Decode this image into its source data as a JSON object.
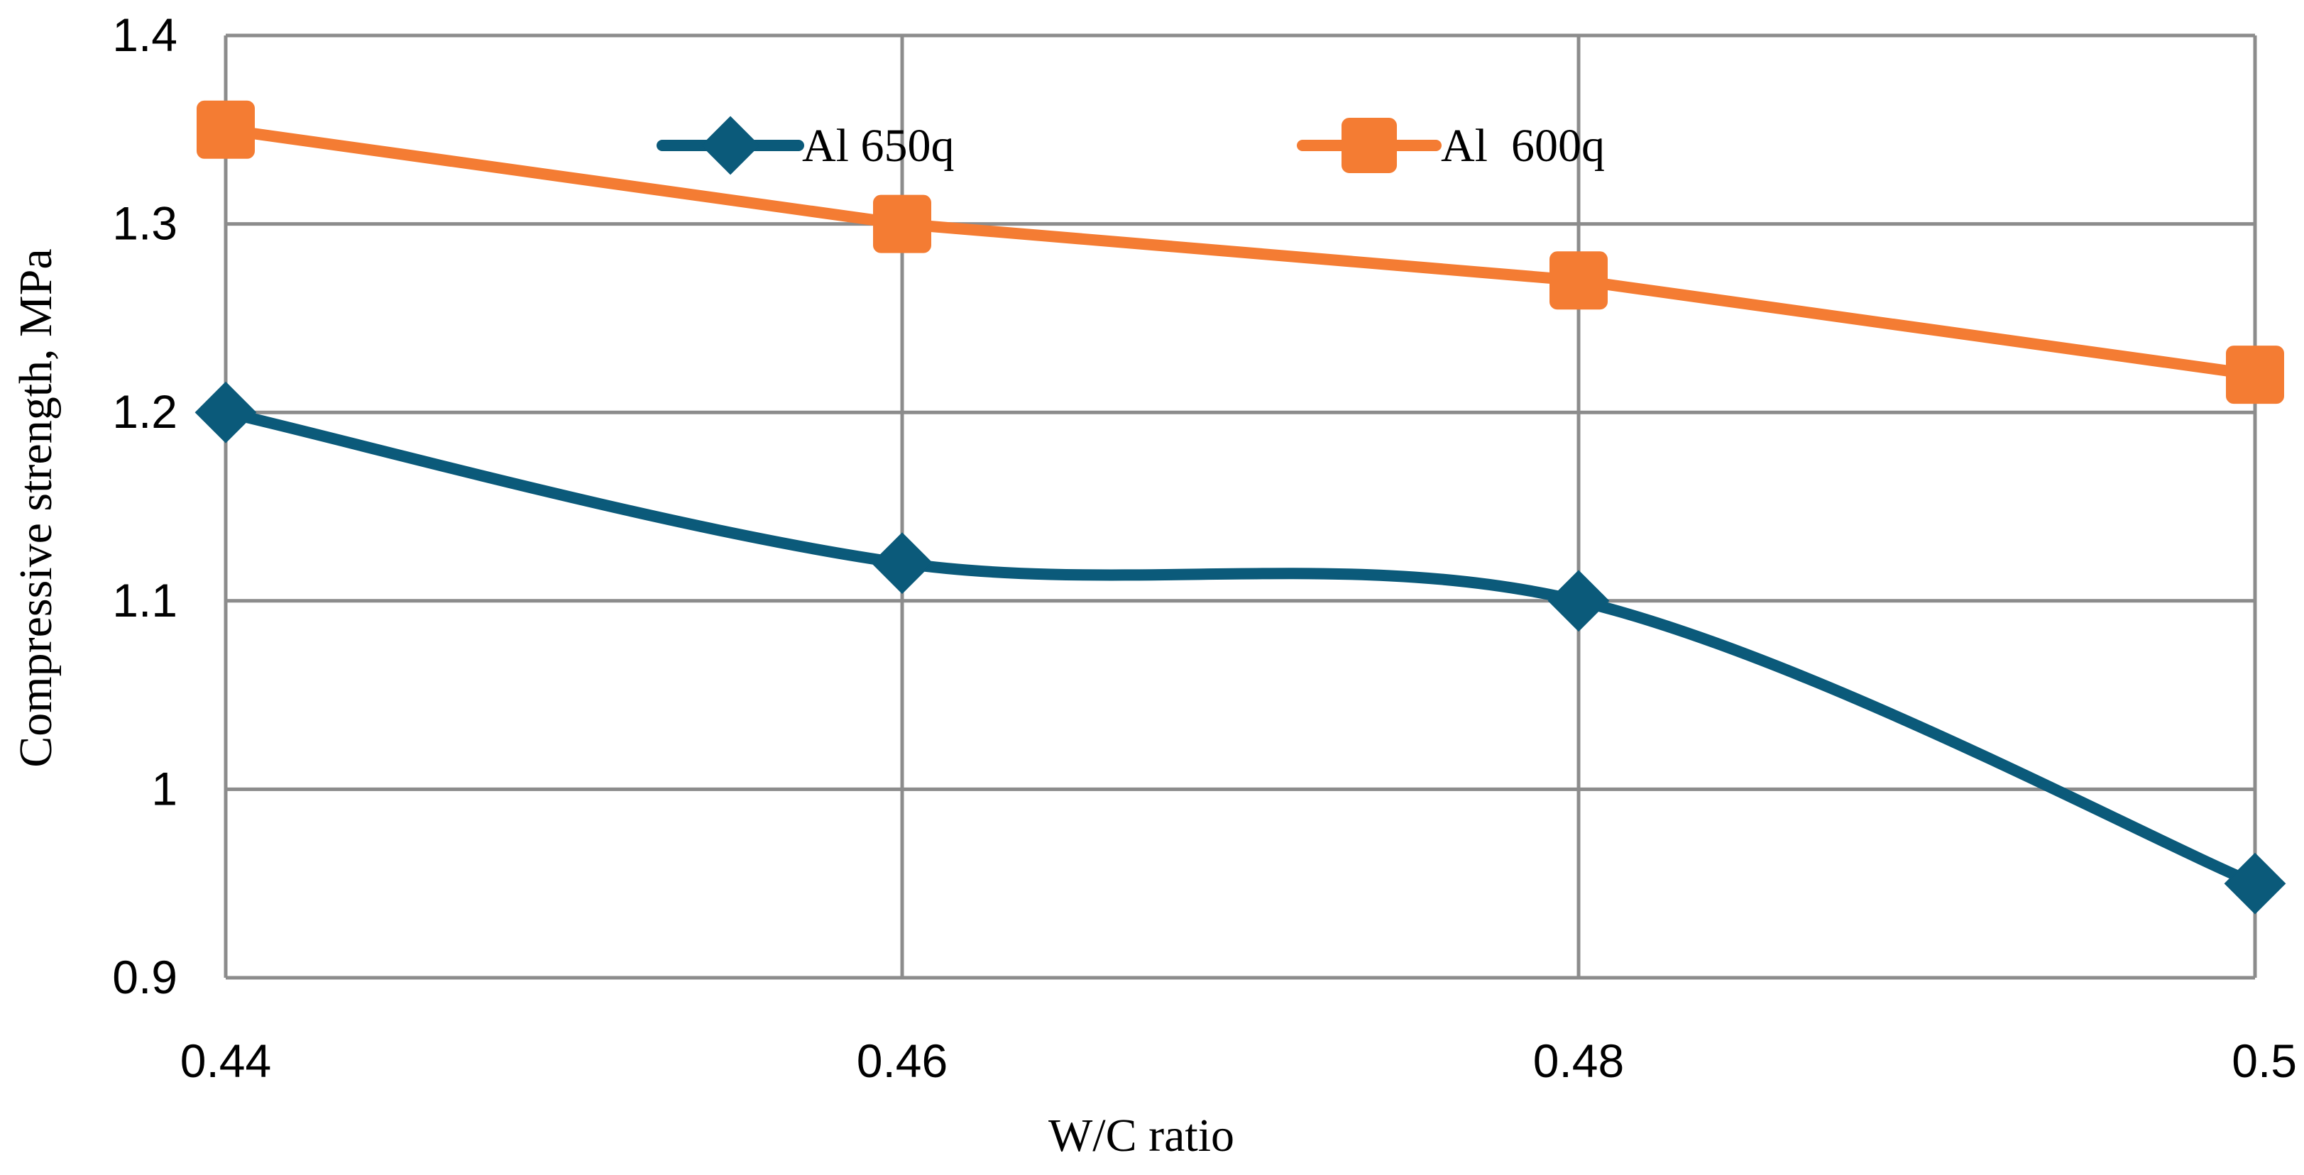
{
  "chart_data": {
    "type": "line",
    "title": "",
    "xlabel": "W/C  ratio",
    "ylabel": "Compressive strength, MPa",
    "x": [
      0.44,
      0.46,
      0.48,
      0.5
    ],
    "x_tick_labels": [
      "0.44",
      "0.46",
      "0.48",
      "0.5"
    ],
    "xlim": [
      0.44,
      0.5
    ],
    "ylim": [
      0.9,
      1.4
    ],
    "y_ticks": [
      0.9,
      1.0,
      1.1,
      1.2,
      1.3,
      1.4
    ],
    "y_tick_labels": [
      "0.9",
      "1",
      "1.1",
      "1.2",
      "1.3",
      "1.4"
    ],
    "grid": true,
    "legend_position": "top-center",
    "series": [
      {
        "name": "Al 650q",
        "values": [
          1.2,
          1.12,
          1.1,
          0.95
        ],
        "color": "#0b5a7a",
        "marker": "diamond",
        "smooth": true
      },
      {
        "name": "Al  600q",
        "values": [
          1.35,
          1.3,
          1.27,
          1.22
        ],
        "color": "#f47c33",
        "marker": "square",
        "smooth": false
      }
    ]
  }
}
